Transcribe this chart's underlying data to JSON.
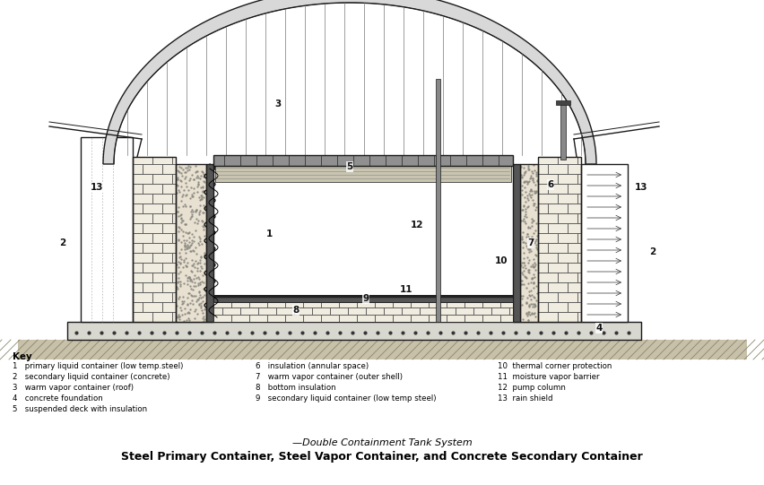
{
  "title_line1": "—Double Containment Tank System",
  "title_line2": "Steel Primary Container, Steel Vapor Container, and Concrete Secondary Container",
  "key_title": "Key",
  "key_items_col1": [
    "1   primary liquid container (low temp.steel)",
    "2   secondary liquid container (concrete)",
    "3   warm vapor container (roof)",
    "4   concrete foundation",
    "5   suspended deck with insulation"
  ],
  "key_items_col2": [
    "6   insulation (annular space)",
    "7   warm vapor container (outer shell)",
    "8   bottom insulation",
    "9   secondary liquid container (low temp steel)"
  ],
  "key_items_col3": [
    "10  thermal corner protection",
    "11  moisture vapor barrier",
    "12  pump column",
    "13  rain shield"
  ],
  "bg_color": "#ffffff",
  "line_color": "#1a1a1a"
}
